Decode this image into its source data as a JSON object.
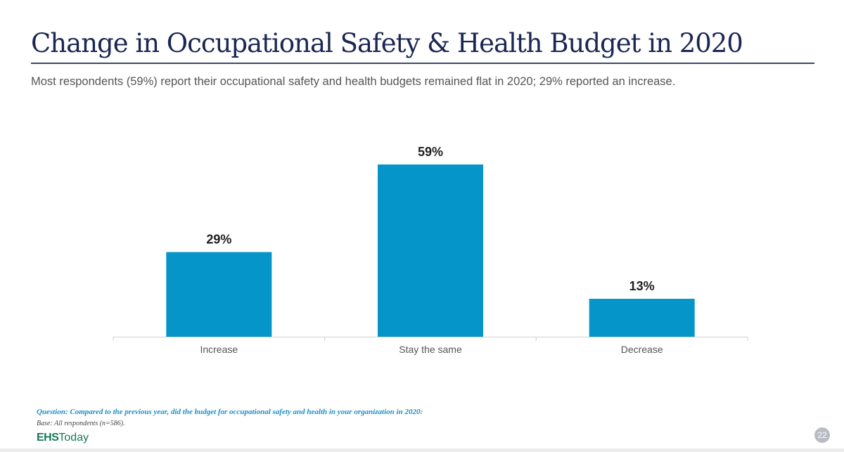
{
  "header": {
    "title": "Change in Occupational Safety & Health Budget in 2020",
    "subtitle": "Most respondents (59%) report their occupational safety and health budgets remained flat in 2020; 29% reported an increase."
  },
  "chart_data": {
    "type": "bar",
    "categories": [
      "Increase",
      "Stay the same",
      "Decrease"
    ],
    "values": [
      29,
      59,
      13
    ],
    "data_labels": [
      "29%",
      "59%",
      "13%"
    ],
    "unit": "%",
    "ylim": [
      0,
      59
    ],
    "grid": false,
    "bar_color": "#0595c9"
  },
  "footer": {
    "question": "Question: Compared to the previous year, did the budget for occupational safety and health in your organization in 2020:",
    "base": "Base: All respondents (n=586).",
    "logo_bold": "EHS",
    "logo_light": "Today",
    "page_number": "22"
  }
}
